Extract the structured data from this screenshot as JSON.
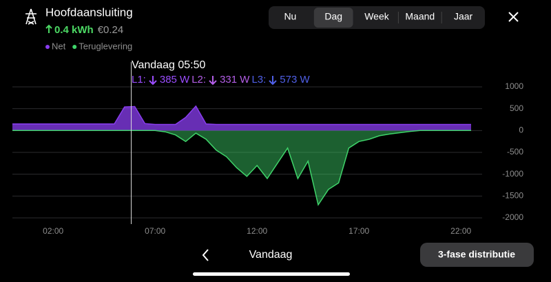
{
  "header": {
    "title": "Hoofdaansluiting",
    "energy": "0.4 kWh",
    "cost": "€0.24"
  },
  "tabs": [
    "Nu",
    "Dag",
    "Week",
    "Maand",
    "Jaar"
  ],
  "selected_tab": 1,
  "tooltip": {
    "time": "Vandaag 05:50",
    "phases": [
      {
        "label": "L1:",
        "value": "385 W",
        "color": "#9b4dff"
      },
      {
        "label": "L2:",
        "value": "331 W",
        "color": "#b45fe8"
      },
      {
        "label": "L3:",
        "value": "573 W",
        "color": "#5060e8"
      }
    ]
  },
  "chart_data": {
    "type": "area",
    "x": [
      0,
      0.5,
      1,
      1.5,
      2,
      2.5,
      3,
      3.5,
      4,
      4.5,
      5,
      5.5,
      6,
      6.5,
      7,
      7.5,
      8,
      8.5,
      9,
      9.5,
      10,
      10.5,
      11,
      11.5,
      12,
      12.5,
      13,
      13.5,
      14,
      14.5,
      15,
      15.5,
      16,
      16.5,
      17,
      17.5,
      18,
      18.5,
      19,
      19.5,
      20,
      20.5,
      21,
      21.5,
      22,
      22.5
    ],
    "series": [
      {
        "name": "Net",
        "color": "#8a3df0",
        "values": [
          150,
          150,
          150,
          150,
          150,
          150,
          150,
          150,
          150,
          150,
          150,
          540,
          550,
          160,
          140,
          140,
          140,
          300,
          560,
          150,
          140,
          140,
          140,
          140,
          140,
          140,
          140,
          140,
          140,
          140,
          140,
          140,
          140,
          140,
          140,
          140,
          140,
          140,
          140,
          140,
          140,
          140,
          140,
          140,
          140,
          140
        ]
      },
      {
        "name": "Teruglevering",
        "color": "#3fd46a",
        "values": [
          0,
          0,
          0,
          0,
          0,
          0,
          0,
          0,
          0,
          0,
          0,
          0,
          0,
          0,
          0,
          -30,
          -100,
          -250,
          -60,
          -200,
          -450,
          -600,
          -850,
          -1050,
          -800,
          -1100,
          -750,
          -400,
          -1100,
          -700,
          -1700,
          -1350,
          -1200,
          -400,
          -250,
          -200,
          -120,
          -80,
          -50,
          -20,
          0,
          0,
          0,
          0,
          0,
          0
        ]
      }
    ],
    "xlim": [
      0,
      24
    ],
    "xticks": [
      {
        "value": 2,
        "label": "02:00"
      },
      {
        "value": 7,
        "label": "07:00"
      },
      {
        "value": 12,
        "label": "12:00"
      },
      {
        "value": 17,
        "label": "17:00"
      },
      {
        "value": 22,
        "label": "22:00"
      }
    ],
    "ylim": [
      -2000,
      1000
    ],
    "yticks": [
      1000,
      500,
      0,
      -500,
      -1000,
      -1500,
      -2000
    ],
    "grid": true,
    "cursor_x": 5.83
  },
  "footer": {
    "period": "Vandaag",
    "button": "3-fase distributie"
  }
}
